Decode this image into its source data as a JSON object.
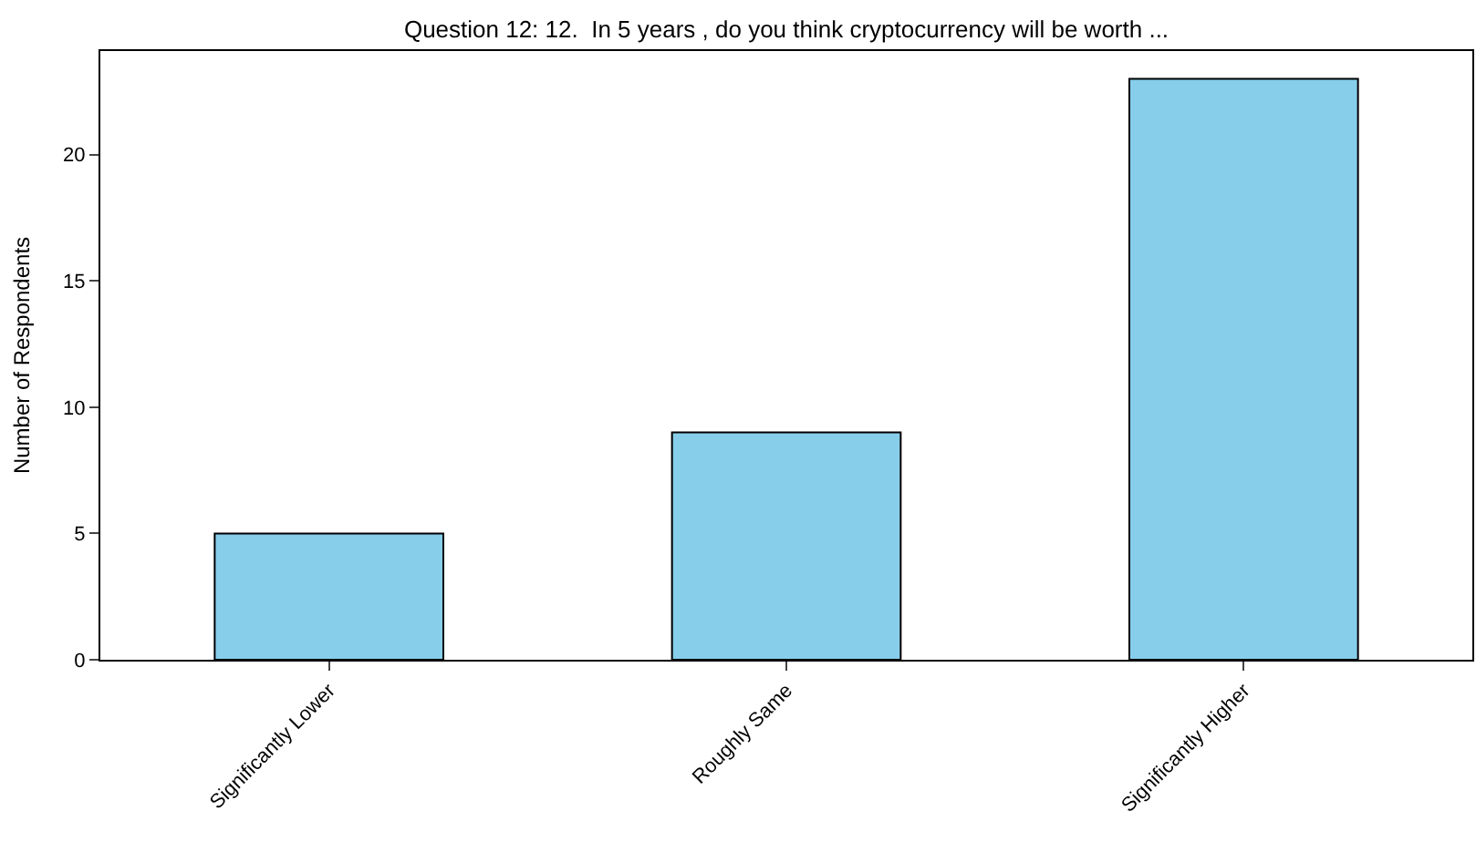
{
  "chart_data": {
    "type": "bar",
    "title": "Question 12: 12.  In 5 years , do you think cryptocurrency will be worth ...",
    "ylabel": "Number of Respondents",
    "categories": [
      "Significantly Lower",
      "Roughly Same",
      "Significantly Higher"
    ],
    "values": [
      5,
      9,
      23
    ],
    "color": "#87ceeb",
    "ylim": [
      0,
      24.1
    ],
    "yticks": [
      0,
      5,
      10,
      15,
      20
    ]
  }
}
